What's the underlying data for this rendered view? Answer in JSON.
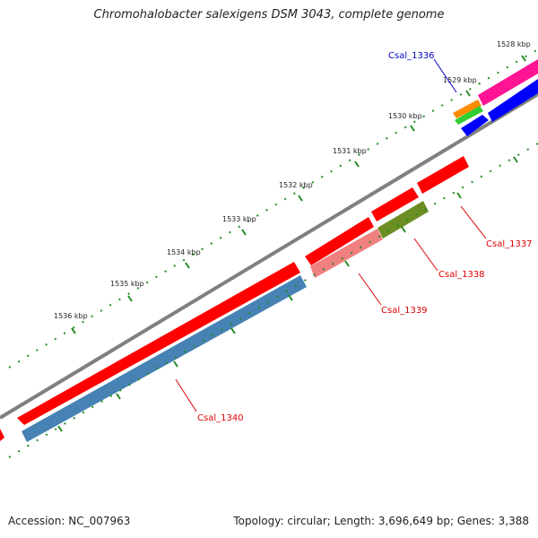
{
  "title": "Chromohalobacter salexigens DSM 3043, complete genome",
  "footer": {
    "accession": "Accession: NC_007963",
    "summary": "Topology: circular; Length: 3,696,649 bp; Genes: 3,388"
  },
  "scale_labels": [
    "1528 kbp",
    "1529 kbp",
    "1530 kbp",
    "1531 kbp",
    "1532 kbp",
    "1533 kbp",
    "1534 kbp",
    "1535 kbp",
    "1536 kbp"
  ],
  "genes": [
    {
      "name": "Csal_1336",
      "color": "#0000cc"
    },
    {
      "name": "Csal_1337",
      "color": "#dd0000"
    },
    {
      "name": "Csal_1338",
      "color": "#dd0000"
    },
    {
      "name": "Csal_1339",
      "color": "#dd0000"
    },
    {
      "name": "Csal_1340",
      "color": "#dd0000"
    }
  ],
  "colors": {
    "backbone": "#808080",
    "cds": "#ff0000",
    "pink_feature": "#f08080",
    "olive_feature": "#6b8e23",
    "steel_feature": "#4682b4",
    "blue_feature": "#0000ff",
    "magenta_feature": "#ff1493",
    "orange_feature": "#ff8c00",
    "green_feature": "#32cd32",
    "ticks": "#228b22"
  }
}
